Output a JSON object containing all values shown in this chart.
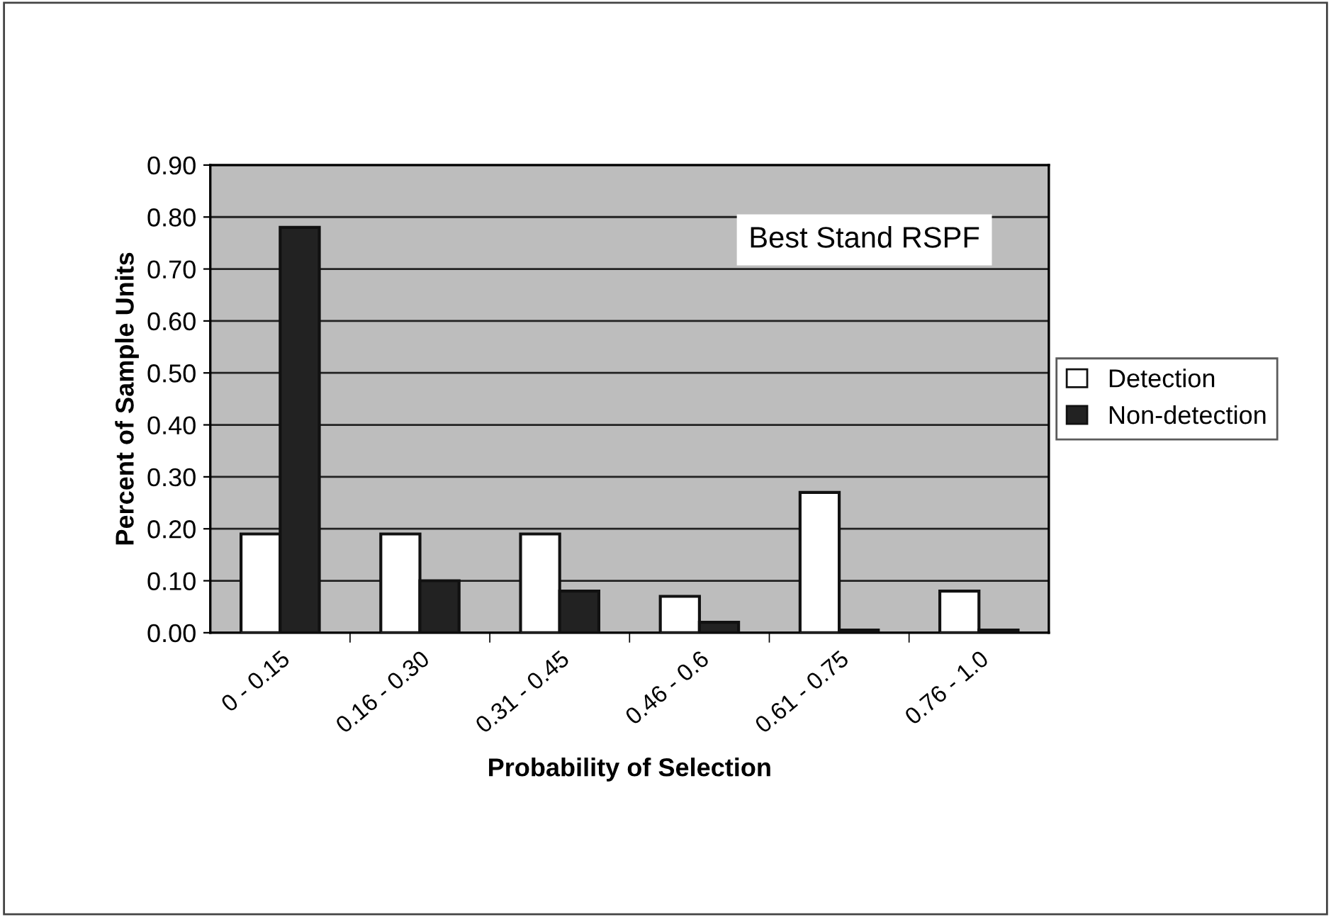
{
  "chart_data": {
    "type": "bar",
    "xlabel": "Probability of Selection",
    "ylabel": "Percent of Sample Units",
    "categories": [
      "0 - 0.15",
      "0.16 - 0.30",
      "0.31 - 0.45",
      "0.46 - 0.6",
      "0.61 - 0.75",
      "0.76 - 1.0"
    ],
    "series": [
      {
        "name": "Detection",
        "color": "#ffffff",
        "values": [
          0.19,
          0.19,
          0.19,
          0.07,
          0.27,
          0.08
        ]
      },
      {
        "name": "Non-detection",
        "color": "#222222",
        "values": [
          0.78,
          0.1,
          0.08,
          0.02,
          0.005,
          0.005
        ]
      }
    ],
    "ylim": [
      0,
      0.9
    ],
    "yticks": [
      {
        "value": 0,
        "label": "0.00"
      },
      {
        "value": 0.1,
        "label": "0.10"
      },
      {
        "value": 0.2,
        "label": "0.20"
      },
      {
        "value": 0.3,
        "label": "0.30"
      },
      {
        "value": 0.4,
        "label": "0.40"
      },
      {
        "value": 0.5,
        "label": "0.50"
      },
      {
        "value": 0.6,
        "label": "0.60"
      },
      {
        "value": 0.7,
        "label": "0.70"
      },
      {
        "value": 0.8,
        "label": "0.80"
      },
      {
        "value": 0.9,
        "label": "0.90"
      }
    ],
    "grid": "y",
    "legend": "right",
    "annotations": [
      "Best Stand RSPF"
    ]
  }
}
